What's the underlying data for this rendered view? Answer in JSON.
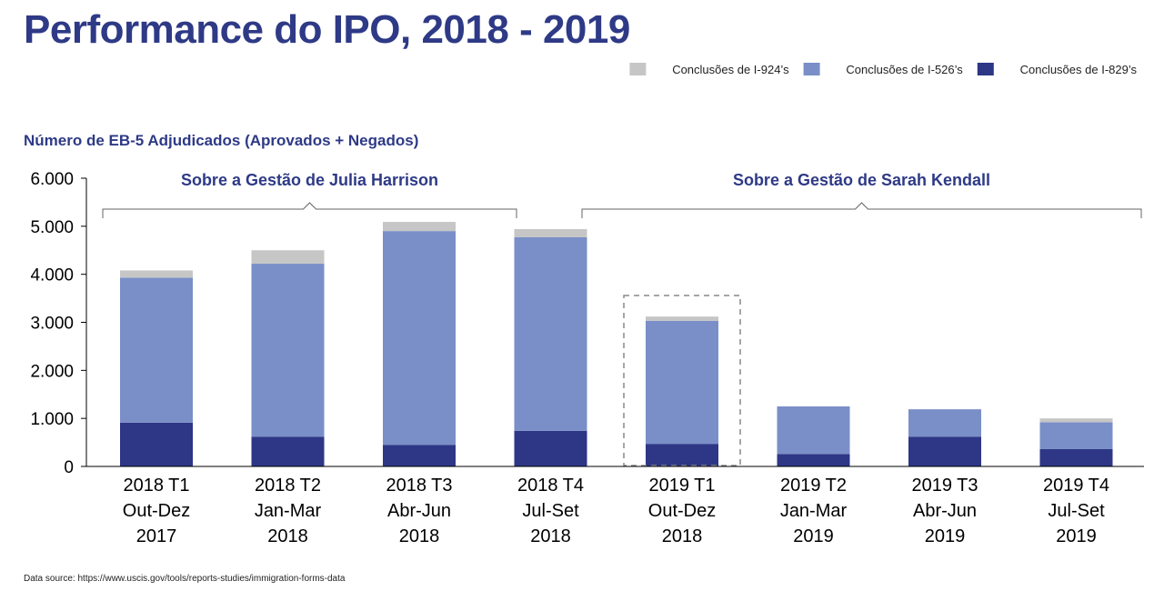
{
  "title": "Performance do IPO, 2018 - 2019",
  "source": "Data source: https://www.uscis.gov/tools/reports-studies/immigration-forms-data",
  "colors": {
    "title": "#2e3a86",
    "annotation": "#2e3a86",
    "axis": "#000000",
    "bracket": "#666666",
    "highlight_box": "#888888"
  },
  "chart_data": {
    "type": "bar",
    "stacked": true,
    "ylabel": "Número de EB-5 Adjudicados (Aprovados + Negados)",
    "ylim": [
      0,
      6000
    ],
    "yticks": [
      0,
      1000,
      2000,
      3000,
      4000,
      5000,
      6000
    ],
    "ytick_labels": [
      "0",
      "1.000",
      "2.000",
      "3.000",
      "4.000",
      "5.000",
      "6.000"
    ],
    "grid": false,
    "legend_position": "top-right",
    "categories": [
      [
        "2018 T1",
        "Out-Dez",
        "2017"
      ],
      [
        "2018 T2",
        "Jan-Mar",
        "2018"
      ],
      [
        "2018 T3",
        "Abr-Jun",
        "2018"
      ],
      [
        "2018 T4",
        "Jul-Set",
        "2018"
      ],
      [
        "2019 T1",
        "Out-Dez",
        "2018"
      ],
      [
        "2019 T2",
        "Jan-Mar",
        "2019"
      ],
      [
        "2019 T3",
        "Abr-Jun",
        "2019"
      ],
      [
        "2019 T4",
        "Jul-Set",
        "2019"
      ]
    ],
    "series": [
      {
        "name": "Conclusões de I-829’s",
        "color": "#2e3686",
        "values": [
          910,
          620,
          450,
          740,
          470,
          260,
          620,
          360
        ]
      },
      {
        "name": "Conclusões de I-526’s",
        "color": "#7a8fc8",
        "values": [
          3020,
          3600,
          4450,
          4030,
          2560,
          990,
          570,
          560
        ]
      },
      {
        "name": "Conclusões de I-924’s",
        "color": "#c6c6c6",
        "values": [
          150,
          280,
          190,
          170,
          90,
          0,
          0,
          80
        ]
      }
    ],
    "legend_order": [
      2,
      1,
      0
    ],
    "annotations": [
      {
        "text": "Sobre a Gestão de Julia Harrison",
        "from_category": 0,
        "to_category": 3
      },
      {
        "text": "Sobre a Gestão de Sarah Kendall",
        "from_category": 4,
        "to_category": 7
      }
    ],
    "highlighted_category": 4
  }
}
